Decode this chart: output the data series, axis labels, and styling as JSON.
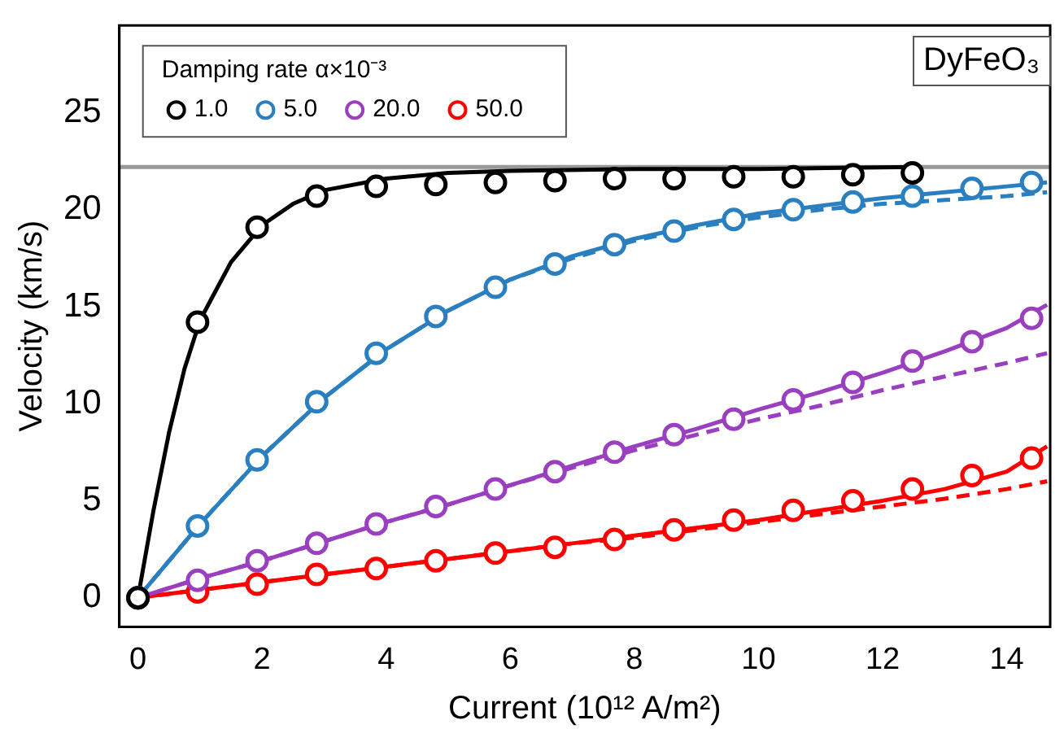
{
  "chart_data": {
    "type": "scatter",
    "xlabel": "Current (10¹² A/m²)",
    "ylabel": "Velocity (km/s)",
    "legend_title": "Damping rate α×10⁻³",
    "legend": "top left",
    "grid": false,
    "marker": "circle",
    "xlim": [
      -0.3,
      14.7
    ],
    "ylim": [
      -1.5,
      29.5
    ],
    "xticks": [
      0,
      2,
      4,
      6,
      8,
      10,
      12,
      14
    ],
    "yticks": [
      0,
      5,
      10,
      15,
      20,
      25
    ],
    "annotations": [
      "DyFeO₃"
    ],
    "ref_lines": [
      {
        "axis": "y",
        "value": 22.2,
        "color": "#999999"
      }
    ],
    "series": [
      {
        "name": "1.0",
        "color": "#000000",
        "x": [
          0,
          0.96,
          1.92,
          2.88,
          3.84,
          4.8,
          5.76,
          6.72,
          7.68,
          8.64,
          9.6,
          10.56,
          11.52,
          12.48
        ],
        "values": [
          0,
          14.2,
          19.1,
          20.7,
          21.2,
          21.3,
          21.4,
          21.5,
          21.6,
          21.6,
          21.7,
          21.7,
          21.8,
          21.9
        ]
      },
      {
        "name": "5.0",
        "color": "#2a7fc0",
        "x": [
          0,
          0.96,
          1.92,
          2.88,
          3.84,
          4.8,
          5.76,
          6.72,
          7.68,
          8.64,
          9.6,
          10.56,
          11.52,
          12.48,
          13.44,
          14.4
        ],
        "values": [
          0,
          3.7,
          7.1,
          10.1,
          12.6,
          14.5,
          16.0,
          17.2,
          18.2,
          18.9,
          19.5,
          20.0,
          20.4,
          20.7,
          21.1,
          21.4
        ]
      },
      {
        "name": "20.0",
        "color": "#9a3fbf",
        "x": [
          0,
          0.96,
          1.92,
          2.88,
          3.84,
          4.8,
          5.76,
          6.72,
          7.68,
          8.64,
          9.6,
          10.56,
          11.52,
          12.48,
          13.44,
          14.4
        ],
        "values": [
          0,
          0.9,
          1.9,
          2.8,
          3.8,
          4.7,
          5.6,
          6.5,
          7.5,
          8.4,
          9.2,
          10.2,
          11.1,
          12.2,
          13.2,
          14.4
        ]
      },
      {
        "name": "50.0",
        "color": "#ff0000",
        "x": [
          0,
          0.96,
          1.92,
          2.88,
          3.84,
          4.8,
          5.76,
          6.72,
          7.68,
          8.64,
          9.6,
          10.56,
          11.52,
          12.48,
          13.44,
          14.4
        ],
        "values": [
          0,
          0.3,
          0.7,
          1.2,
          1.5,
          1.9,
          2.3,
          2.6,
          3.0,
          3.5,
          4.0,
          4.5,
          5.0,
          5.6,
          6.3,
          7.2
        ]
      },
      {
        "type": "line",
        "color": "#000000",
        "marker": "none",
        "line_style": "solid",
        "x": [
          0,
          0.25,
          0.5,
          0.75,
          1,
          1.5,
          2,
          2.5,
          3,
          4,
          5,
          6,
          8,
          10,
          12.5
        ],
        "values": [
          0,
          4.5,
          8.5,
          11.8,
          14.3,
          17.3,
          19.2,
          20.3,
          21.0,
          21.6,
          21.9,
          22.0,
          22.1,
          22.1,
          22.2
        ]
      },
      {
        "type": "line",
        "color": "#2a7fc0",
        "marker": "none",
        "line_style": "solid",
        "x": [
          0,
          1,
          2,
          3,
          4,
          5,
          6,
          7,
          8,
          9,
          10,
          11,
          12,
          13,
          14,
          14.65
        ],
        "values": [
          0,
          3.8,
          7.3,
          10.3,
          12.8,
          14.8,
          16.4,
          17.6,
          18.5,
          19.2,
          19.8,
          20.2,
          20.6,
          20.9,
          21.2,
          21.4
        ]
      },
      {
        "type": "line",
        "color": "#2a7fc0",
        "marker": "none",
        "line_style": "dashed",
        "x": [
          0,
          1,
          2,
          3,
          4,
          5,
          6,
          7,
          8,
          9,
          10,
          11,
          12,
          13,
          14,
          14.65
        ],
        "values": [
          0,
          3.8,
          7.3,
          10.3,
          12.8,
          14.8,
          16.4,
          17.5,
          18.4,
          19.1,
          19.6,
          20.0,
          20.3,
          20.5,
          20.7,
          20.9
        ]
      },
      {
        "type": "line",
        "color": "#9a3fbf",
        "marker": "none",
        "line_style": "solid",
        "x": [
          0,
          1,
          2,
          3,
          4,
          5,
          6,
          7,
          8,
          9,
          10,
          11,
          12,
          13,
          14,
          14.65
        ],
        "values": [
          0,
          1.0,
          1.9,
          2.9,
          3.9,
          4.8,
          5.8,
          6.8,
          7.8,
          8.7,
          9.7,
          10.6,
          11.6,
          12.7,
          13.9,
          15.1
        ]
      },
      {
        "type": "line",
        "color": "#9a3fbf",
        "marker": "none",
        "line_style": "dashed",
        "x": [
          0,
          1,
          2,
          3,
          4,
          5,
          6,
          7,
          8,
          9,
          10,
          11,
          12,
          13,
          14,
          14.65
        ],
        "values": [
          0,
          1.0,
          1.9,
          2.9,
          3.9,
          4.8,
          5.8,
          6.7,
          7.6,
          8.4,
          9.2,
          9.9,
          10.7,
          11.4,
          12.1,
          12.6
        ]
      },
      {
        "type": "line",
        "color": "#ff0000",
        "marker": "none",
        "line_style": "solid",
        "x": [
          0,
          1,
          2,
          3,
          4,
          5,
          6,
          7,
          8,
          9,
          10,
          11,
          12,
          13,
          14,
          14.65
        ],
        "values": [
          0,
          0.4,
          0.8,
          1.2,
          1.6,
          2.0,
          2.4,
          2.8,
          3.2,
          3.6,
          4.0,
          4.5,
          5.0,
          5.6,
          6.5,
          7.8
        ]
      },
      {
        "type": "line",
        "color": "#ff0000",
        "marker": "none",
        "line_style": "dashed",
        "x": [
          0,
          1,
          2,
          3,
          4,
          5,
          6,
          7,
          8,
          9,
          10,
          11,
          12,
          13,
          14,
          14.65
        ],
        "values": [
          0,
          0.4,
          0.8,
          1.2,
          1.6,
          2.0,
          2.4,
          2.8,
          3.1,
          3.5,
          3.9,
          4.3,
          4.7,
          5.1,
          5.6,
          6.0
        ]
      }
    ]
  }
}
